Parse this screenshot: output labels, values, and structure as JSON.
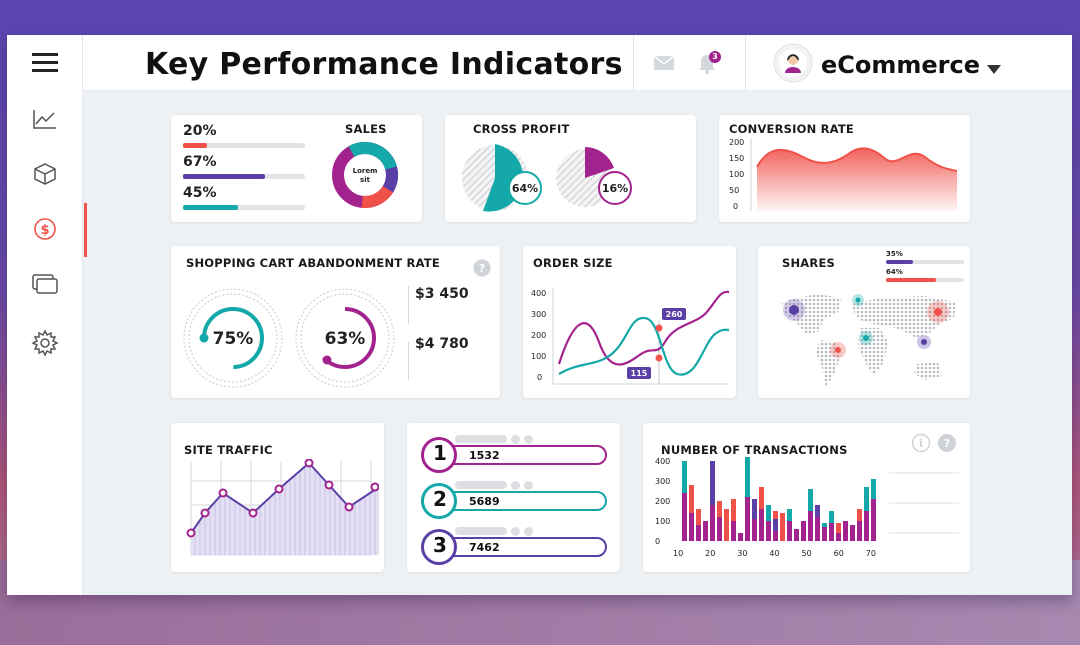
{
  "header": {
    "title": "Key Performance Indicators",
    "notification_count": "3",
    "user_name": "eCommerce"
  },
  "sidebar": {
    "items": [
      {
        "icon": "menu-icon"
      },
      {
        "icon": "line-chart-icon"
      },
      {
        "icon": "box-icon"
      },
      {
        "icon": "dollar-icon",
        "active": true
      },
      {
        "icon": "windows-icon"
      },
      {
        "icon": "gear-icon"
      }
    ]
  },
  "sales": {
    "title": "SALES",
    "bars": [
      {
        "label": "20%",
        "value": 0.2,
        "color": "#f0524a"
      },
      {
        "label": "67%",
        "value": 0.67,
        "color": "#5a3fa6"
      },
      {
        "label": "45%",
        "value": 0.45,
        "color": "#14a8a8"
      }
    ],
    "donut_text_1": "Lorem",
    "donut_text_2": "sit"
  },
  "cross_profit": {
    "title": "CROSS PROFIT",
    "items": [
      {
        "label": "64%",
        "value": 0.64,
        "color": "#14a8a8"
      },
      {
        "label": "16%",
        "value": 0.16,
        "color": "#a3238e"
      }
    ]
  },
  "conversion": {
    "title": "CONVERSION RATE",
    "y_ticks": [
      "200",
      "150",
      "100",
      "50",
      "0"
    ]
  },
  "abandonment": {
    "title": "SHOPPING CART ABANDONMENT RATE",
    "rings": [
      {
        "label": "75%",
        "value": 0.75,
        "color": "#14a8a8"
      },
      {
        "label": "63%",
        "value": 0.63,
        "color": "#a3238e"
      }
    ],
    "amounts": [
      "$3 450",
      "$4 780"
    ]
  },
  "order_size": {
    "title": "ORDER SIZE",
    "y_ticks": [
      "400",
      "300",
      "200",
      "100",
      "0"
    ],
    "callouts": [
      "260",
      "115"
    ]
  },
  "shares": {
    "title": "SHARES",
    "bars": [
      {
        "label": "35%",
        "value": 0.35,
        "color": "#5a3fa6"
      },
      {
        "label": "64%",
        "value": 0.64,
        "color": "#f0524a"
      }
    ]
  },
  "site_traffic": {
    "title": "SITE TRAFFIC"
  },
  "ranking": {
    "items": [
      {
        "rank": "1",
        "value": "1532",
        "color": "#a3238e"
      },
      {
        "rank": "2",
        "value": "5689",
        "color": "#14a8a8"
      },
      {
        "rank": "3",
        "value": "7462",
        "color": "#5a3fa6"
      }
    ]
  },
  "chart_data": {
    "type": "bar",
    "title": "NUMBER OF TRANSACTIONS",
    "x_ticks": [
      "10",
      "20",
      "30",
      "40",
      "50",
      "60",
      "70"
    ],
    "y_ticks": [
      "400",
      "300",
      "200",
      "100",
      "0"
    ],
    "ylim": [
      0,
      400
    ],
    "stacks": [
      [
        240,
        160,
        0
      ],
      [
        140,
        0,
        140
      ],
      [
        80,
        0,
        80
      ],
      [
        100,
        0,
        0
      ],
      [
        180,
        220,
        0
      ],
      [
        120,
        0,
        80
      ],
      [
        0,
        0,
        160
      ],
      [
        100,
        0,
        110
      ],
      [
        40,
        0,
        0
      ],
      [
        220,
        200,
        0
      ],
      [
        110,
        100,
        0
      ],
      [
        160,
        0,
        110
      ],
      [
        100,
        80,
        0
      ],
      [
        50,
        60,
        40
      ],
      [
        0,
        0,
        140
      ],
      [
        100,
        60,
        0
      ],
      [
        60,
        0,
        0
      ],
      [
        100,
        0,
        0
      ],
      [
        150,
        110,
        0
      ],
      [
        120,
        60,
        0
      ],
      [
        70,
        20,
        0
      ],
      [
        90,
        60,
        0
      ],
      [
        40,
        0,
        50
      ],
      [
        100,
        0,
        0
      ],
      [
        80,
        0,
        0
      ],
      [
        100,
        0,
        60
      ],
      [
        150,
        120,
        0
      ],
      [
        210,
        100,
        0
      ]
    ],
    "colors": [
      "#a3238e",
      "#14a8a8",
      "#f0524a",
      "#5a3fa6"
    ]
  },
  "theme": {
    "teal": "#14a8a8",
    "purple": "#5a3fa6",
    "magenta": "#a3238e",
    "red": "#f0524a"
  }
}
